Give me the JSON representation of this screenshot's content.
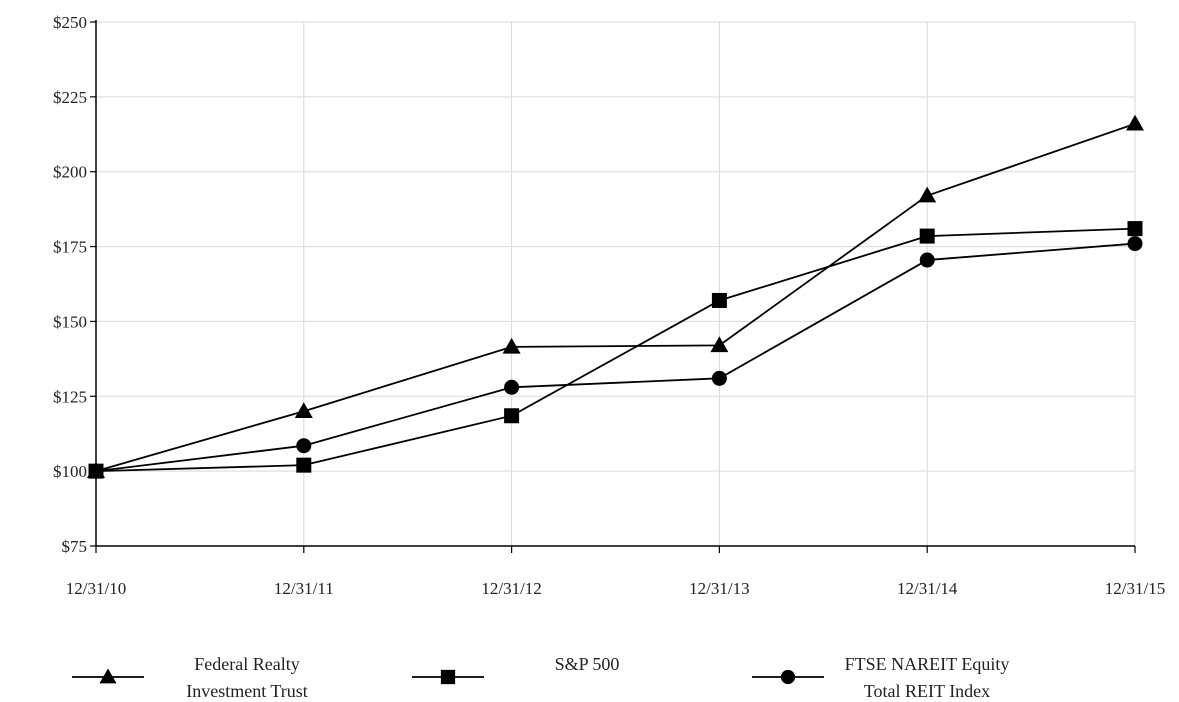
{
  "chart_data": {
    "type": "line",
    "title": "",
    "xlabel": "",
    "ylabel": "",
    "categories": [
      "12/31/10",
      "12/31/11",
      "12/31/12",
      "12/31/13",
      "12/31/14",
      "12/31/15"
    ],
    "ylim": [
      75,
      250
    ],
    "yticks": [
      "$75",
      "$100",
      "$125",
      "$150",
      "$175",
      "$200",
      "$225",
      "$250"
    ],
    "grid": true,
    "legend_position": "bottom",
    "series": [
      {
        "name": "Federal Realty Investment Trust",
        "legend_lines": [
          "Federal Realty",
          "Investment Trust"
        ],
        "marker": "triangle",
        "color": "#000000",
        "values": [
          100,
          120,
          141.5,
          142,
          192,
          216
        ]
      },
      {
        "name": "S&P 500",
        "legend_lines": [
          "S&P 500"
        ],
        "marker": "square",
        "color": "#000000",
        "values": [
          100,
          102,
          118.5,
          157,
          178.5,
          181
        ]
      },
      {
        "name": "FTSE NAREIT Equity Total REIT Index",
        "legend_lines": [
          "FTSE NAREIT Equity",
          "Total REIT Index"
        ],
        "marker": "circle",
        "color": "#000000",
        "values": [
          100,
          108.5,
          128,
          131,
          170.5,
          176
        ]
      }
    ]
  }
}
